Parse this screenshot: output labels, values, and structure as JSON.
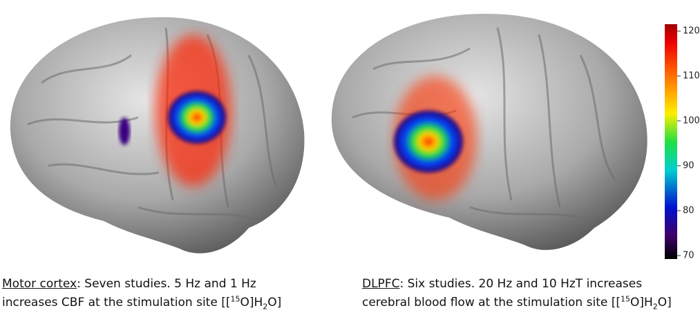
{
  "figure": {
    "colorbar": {
      "range": [
        70,
        120
      ],
      "ticks": [
        70,
        80,
        90,
        100,
        110,
        120
      ]
    },
    "captions": [
      {
        "label": "Motor cortex",
        "text": ": Seven studies. 5 Hz and 1 Hz increases CBF at the stimulation site [[",
        "sup": "15",
        "mid": "O]H",
        "sub": "2",
        "end": "O]"
      },
      {
        "label": "DLPFC",
        "text": ": Six studies. 20 Hz and 10 HzT increases cerebral blood flow at the stimulation site [[",
        "sup": "15",
        "mid": "O]H",
        "sub": "2",
        "end": "O]"
      }
    ]
  }
}
